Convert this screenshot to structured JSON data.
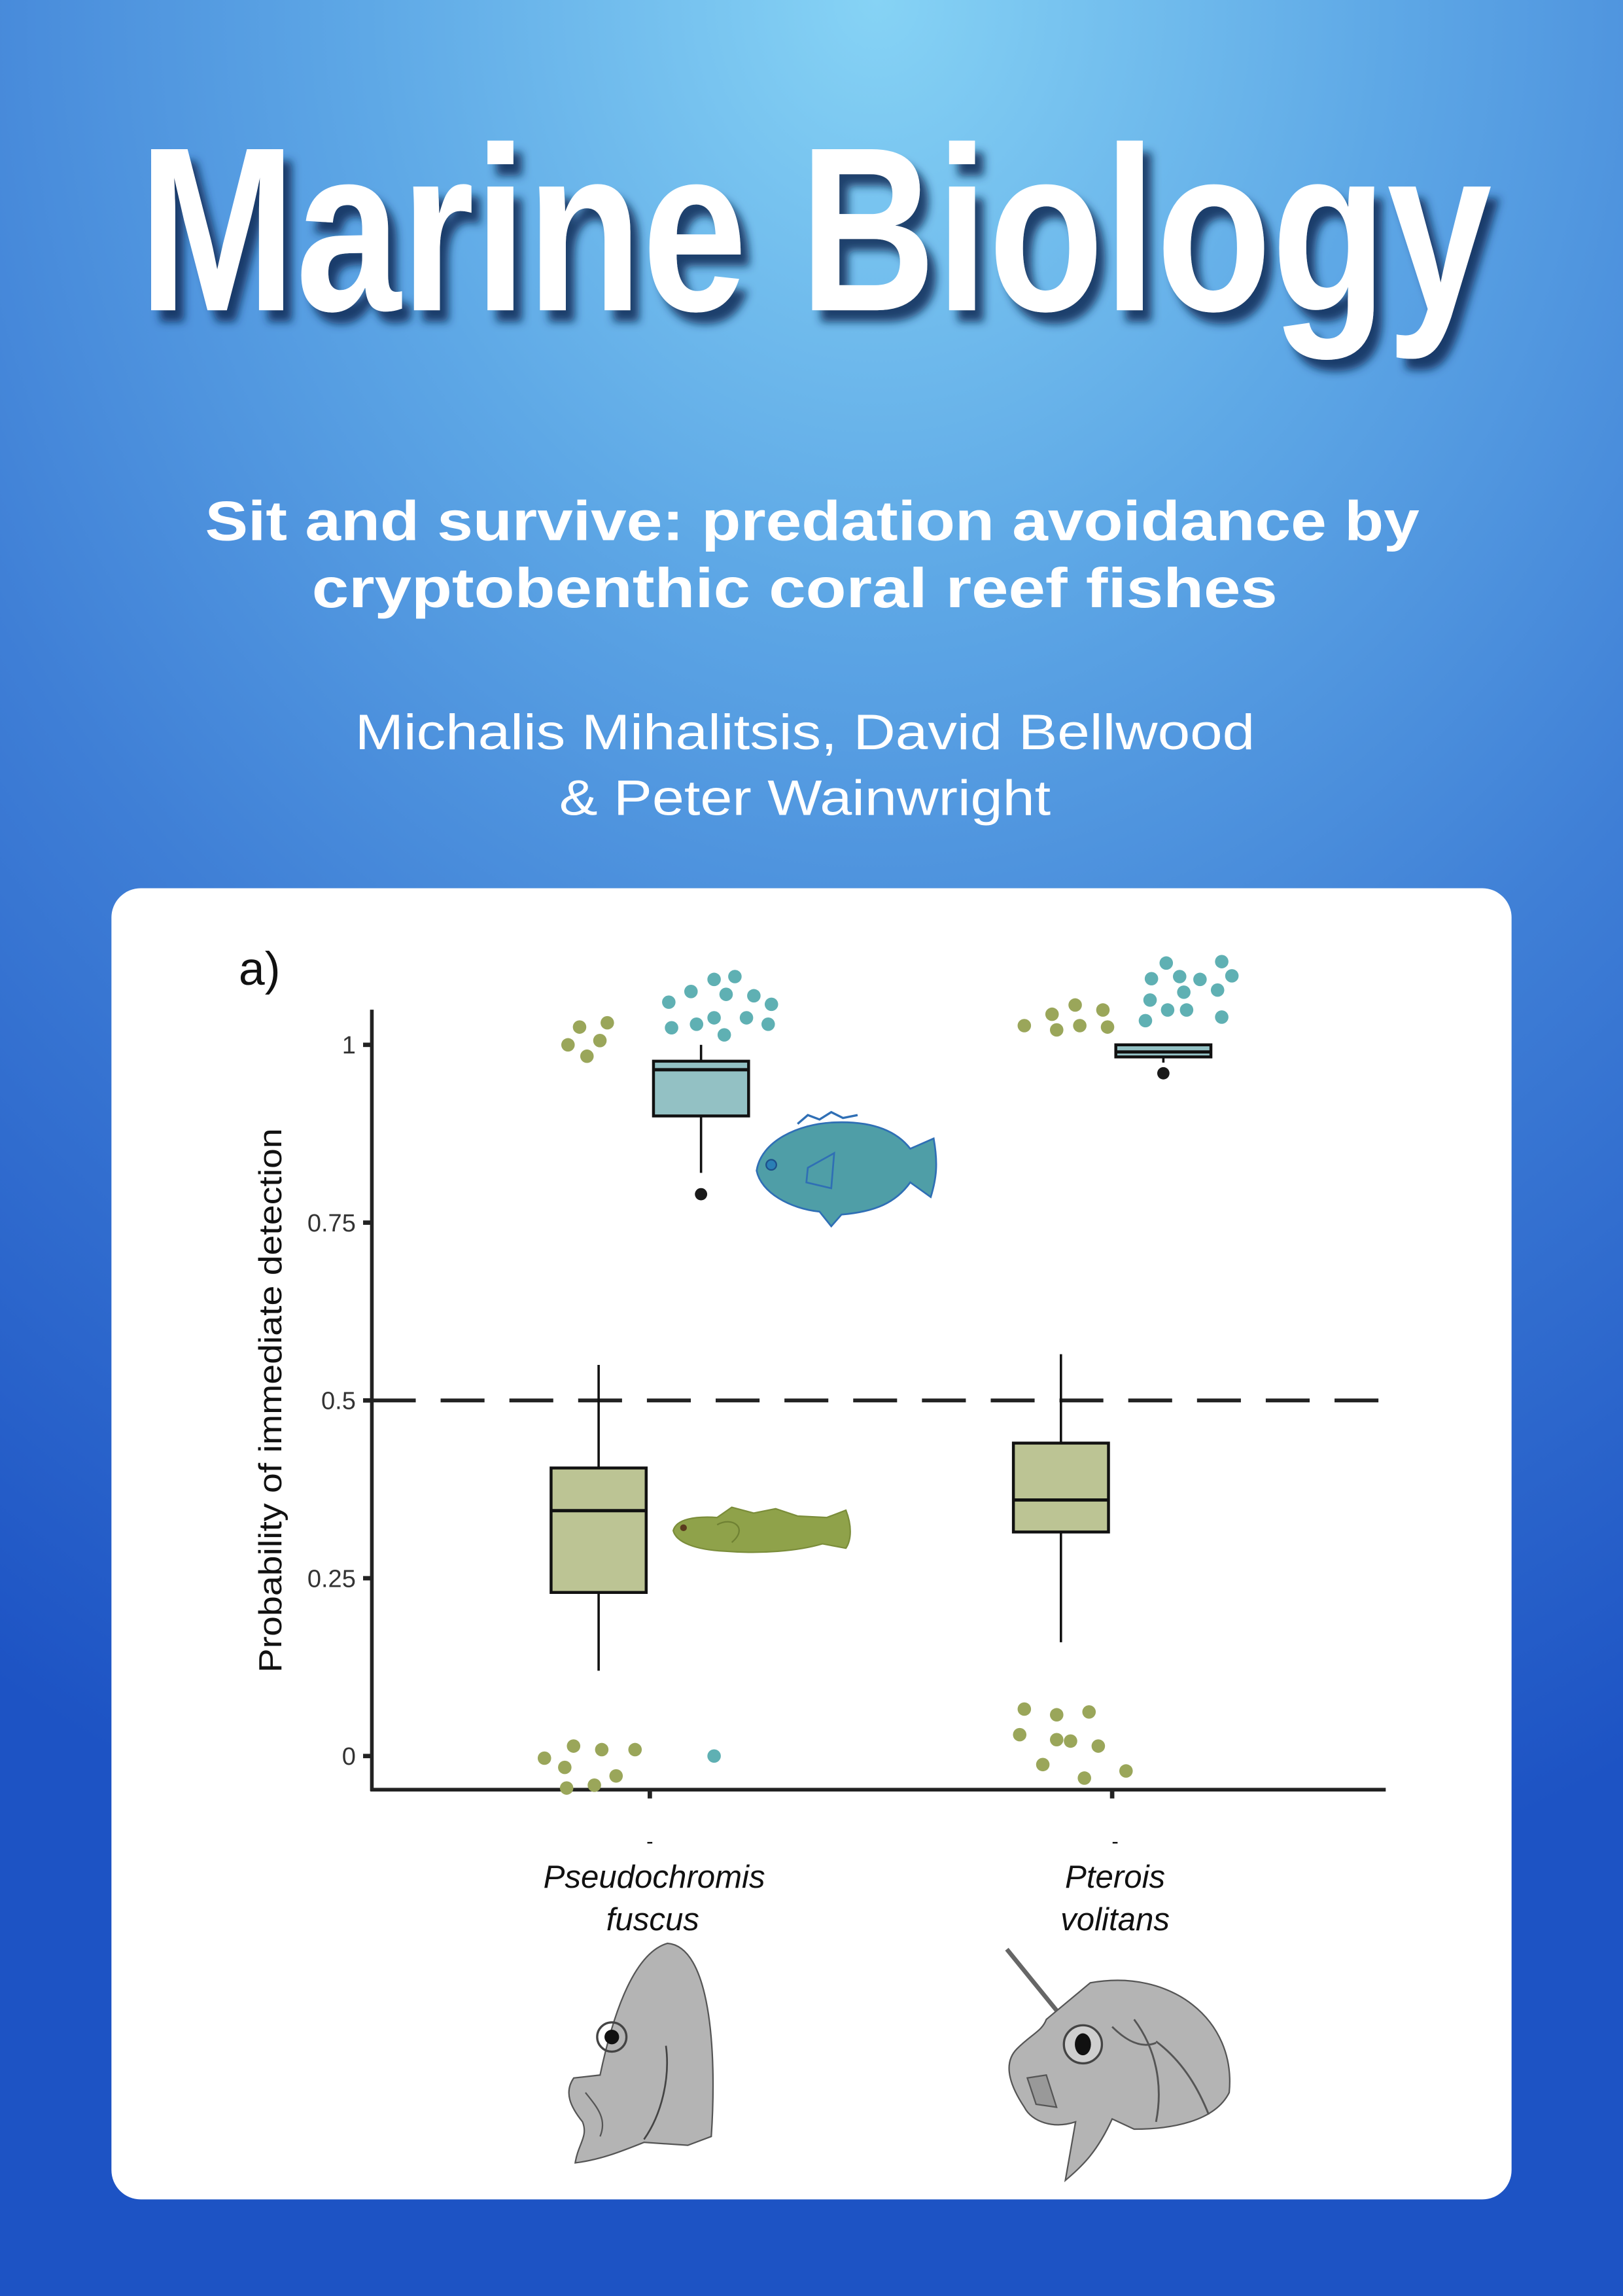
{
  "cover": {
    "journal_title": "Marine Biology",
    "article_title_line1": "Sit and survive: predation avoidance by",
    "article_title_line2": "cryptobenthic coral reef fishes",
    "authors_line1": "Michalis Mihalitsis, David  Bellwood",
    "authors_line2": "& Peter Wainwright"
  },
  "colors": {
    "background_top": "#86d3f5",
    "background_bottom": "#1d53c4",
    "green_box": "#bcc494",
    "green_point": "#9aa65a",
    "teal_box": "#93c1c4",
    "teal_point": "#5fb0b3"
  },
  "chart_data": {
    "type": "box",
    "panel_label": "a)",
    "ylabel": "Probability of immediate detection",
    "xlabel": "",
    "ylim": [
      -0.05,
      1.1
    ],
    "yticks": [
      0,
      0.25,
      0.5,
      0.75,
      1
    ],
    "ytick_labels": [
      "0",
      "0.25",
      "0.5",
      "0.75",
      "1"
    ],
    "reference_line": {
      "y": 0.5,
      "style": "dashed"
    },
    "grid": false,
    "categories": [
      {
        "line1": "Pseudochromis",
        "line2": "fuscus",
        "tick_mark": "-"
      },
      {
        "line1": "Pterois",
        "line2": "volitans",
        "tick_mark": "-"
      }
    ],
    "series": [
      {
        "color_key": "green",
        "boxes": [
          {
            "whisker_low": 0.12,
            "q1": 0.23,
            "median": 0.345,
            "q3": 0.405,
            "whisker_high": 0.55,
            "outliers": []
          },
          {
            "whisker_low": 0.16,
            "q1": 0.315,
            "median": 0.36,
            "q3": 0.44,
            "whisker_high": 0.565,
            "outliers": []
          }
        ],
        "points": [
          {
            "x": 0.823,
            "y": 1.0
          },
          {
            "x": 0.848,
            "y": 1.025
          },
          {
            "x": 0.864,
            "y": 0.984
          },
          {
            "x": 0.892,
            "y": 1.006
          },
          {
            "x": 0.908,
            "y": 1.031
          },
          {
            "x": 0.772,
            "y": -0.003
          },
          {
            "x": 0.816,
            "y": -0.016
          },
          {
            "x": 0.82,
            "y": -0.045
          },
          {
            "x": 0.835,
            "y": 0.014
          },
          {
            "x": 0.88,
            "y": -0.041
          },
          {
            "x": 0.896,
            "y": 0.009
          },
          {
            "x": 0.927,
            "y": -0.028
          },
          {
            "x": 0.968,
            "y": 0.009
          },
          {
            "x": 1.81,
            "y": 1.027
          },
          {
            "x": 1.87,
            "y": 1.043
          },
          {
            "x": 1.88,
            "y": 1.021
          },
          {
            "x": 1.92,
            "y": 1.056
          },
          {
            "x": 1.93,
            "y": 1.027
          },
          {
            "x": 1.98,
            "y": 1.049
          },
          {
            "x": 1.99,
            "y": 1.025
          },
          {
            "x": 1.8,
            "y": 0.03
          },
          {
            "x": 1.81,
            "y": 0.066
          },
          {
            "x": 1.85,
            "y": -0.012
          },
          {
            "x": 1.88,
            "y": 0.058
          },
          {
            "x": 1.88,
            "y": 0.023
          },
          {
            "x": 1.91,
            "y": 0.021
          },
          {
            "x": 1.94,
            "y": -0.031
          },
          {
            "x": 1.95,
            "y": 0.062
          },
          {
            "x": 1.97,
            "y": 0.014
          },
          {
            "x": 2.03,
            "y": -0.021
          }
        ]
      },
      {
        "color_key": "teal",
        "boxes": [
          {
            "whisker_low": 0.82,
            "q1": 0.9,
            "median": 0.965,
            "q3": 0.977,
            "whisker_high": 1.0,
            "outliers": [
              0.79
            ]
          },
          {
            "whisker_low": 0.975,
            "q1": 0.983,
            "median": 0.99,
            "q3": 1.0,
            "whisker_high": 1.0,
            "outliers": [
              0.96
            ]
          }
        ],
        "points": [
          {
            "x": 1.041,
            "y": 1.06
          },
          {
            "x": 1.047,
            "y": 1.024
          },
          {
            "x": 1.089,
            "y": 1.075
          },
          {
            "x": 1.101,
            "y": 1.029
          },
          {
            "x": 1.139,
            "y": 1.092
          },
          {
            "x": 1.139,
            "y": 1.038
          },
          {
            "x": 1.161,
            "y": 1.014
          },
          {
            "x": 1.165,
            "y": 1.071
          },
          {
            "x": 1.184,
            "y": 1.096
          },
          {
            "x": 1.209,
            "y": 1.038
          },
          {
            "x": 1.225,
            "y": 1.069
          },
          {
            "x": 1.256,
            "y": 1.029
          },
          {
            "x": 1.263,
            "y": 1.057
          },
          {
            "x": 1.139,
            "y": 0.0
          },
          {
            "x": 2.072,
            "y": 1.034
          },
          {
            "x": 2.082,
            "y": 1.063
          },
          {
            "x": 2.085,
            "y": 1.093
          },
          {
            "x": 2.117,
            "y": 1.115
          },
          {
            "x": 2.12,
            "y": 1.049
          },
          {
            "x": 2.146,
            "y": 1.096
          },
          {
            "x": 2.155,
            "y": 1.074
          },
          {
            "x": 2.161,
            "y": 1.049
          },
          {
            "x": 2.19,
            "y": 1.092
          },
          {
            "x": 2.228,
            "y": 1.077
          },
          {
            "x": 2.237,
            "y": 1.117
          },
          {
            "x": 2.237,
            "y": 1.039
          },
          {
            "x": 2.259,
            "y": 1.097
          }
        ]
      }
    ],
    "illustrations": [
      "teal-damselfish-icon",
      "green-goby-icon",
      "pseudochromis-head-drawing",
      "pterois-head-drawing"
    ]
  }
}
